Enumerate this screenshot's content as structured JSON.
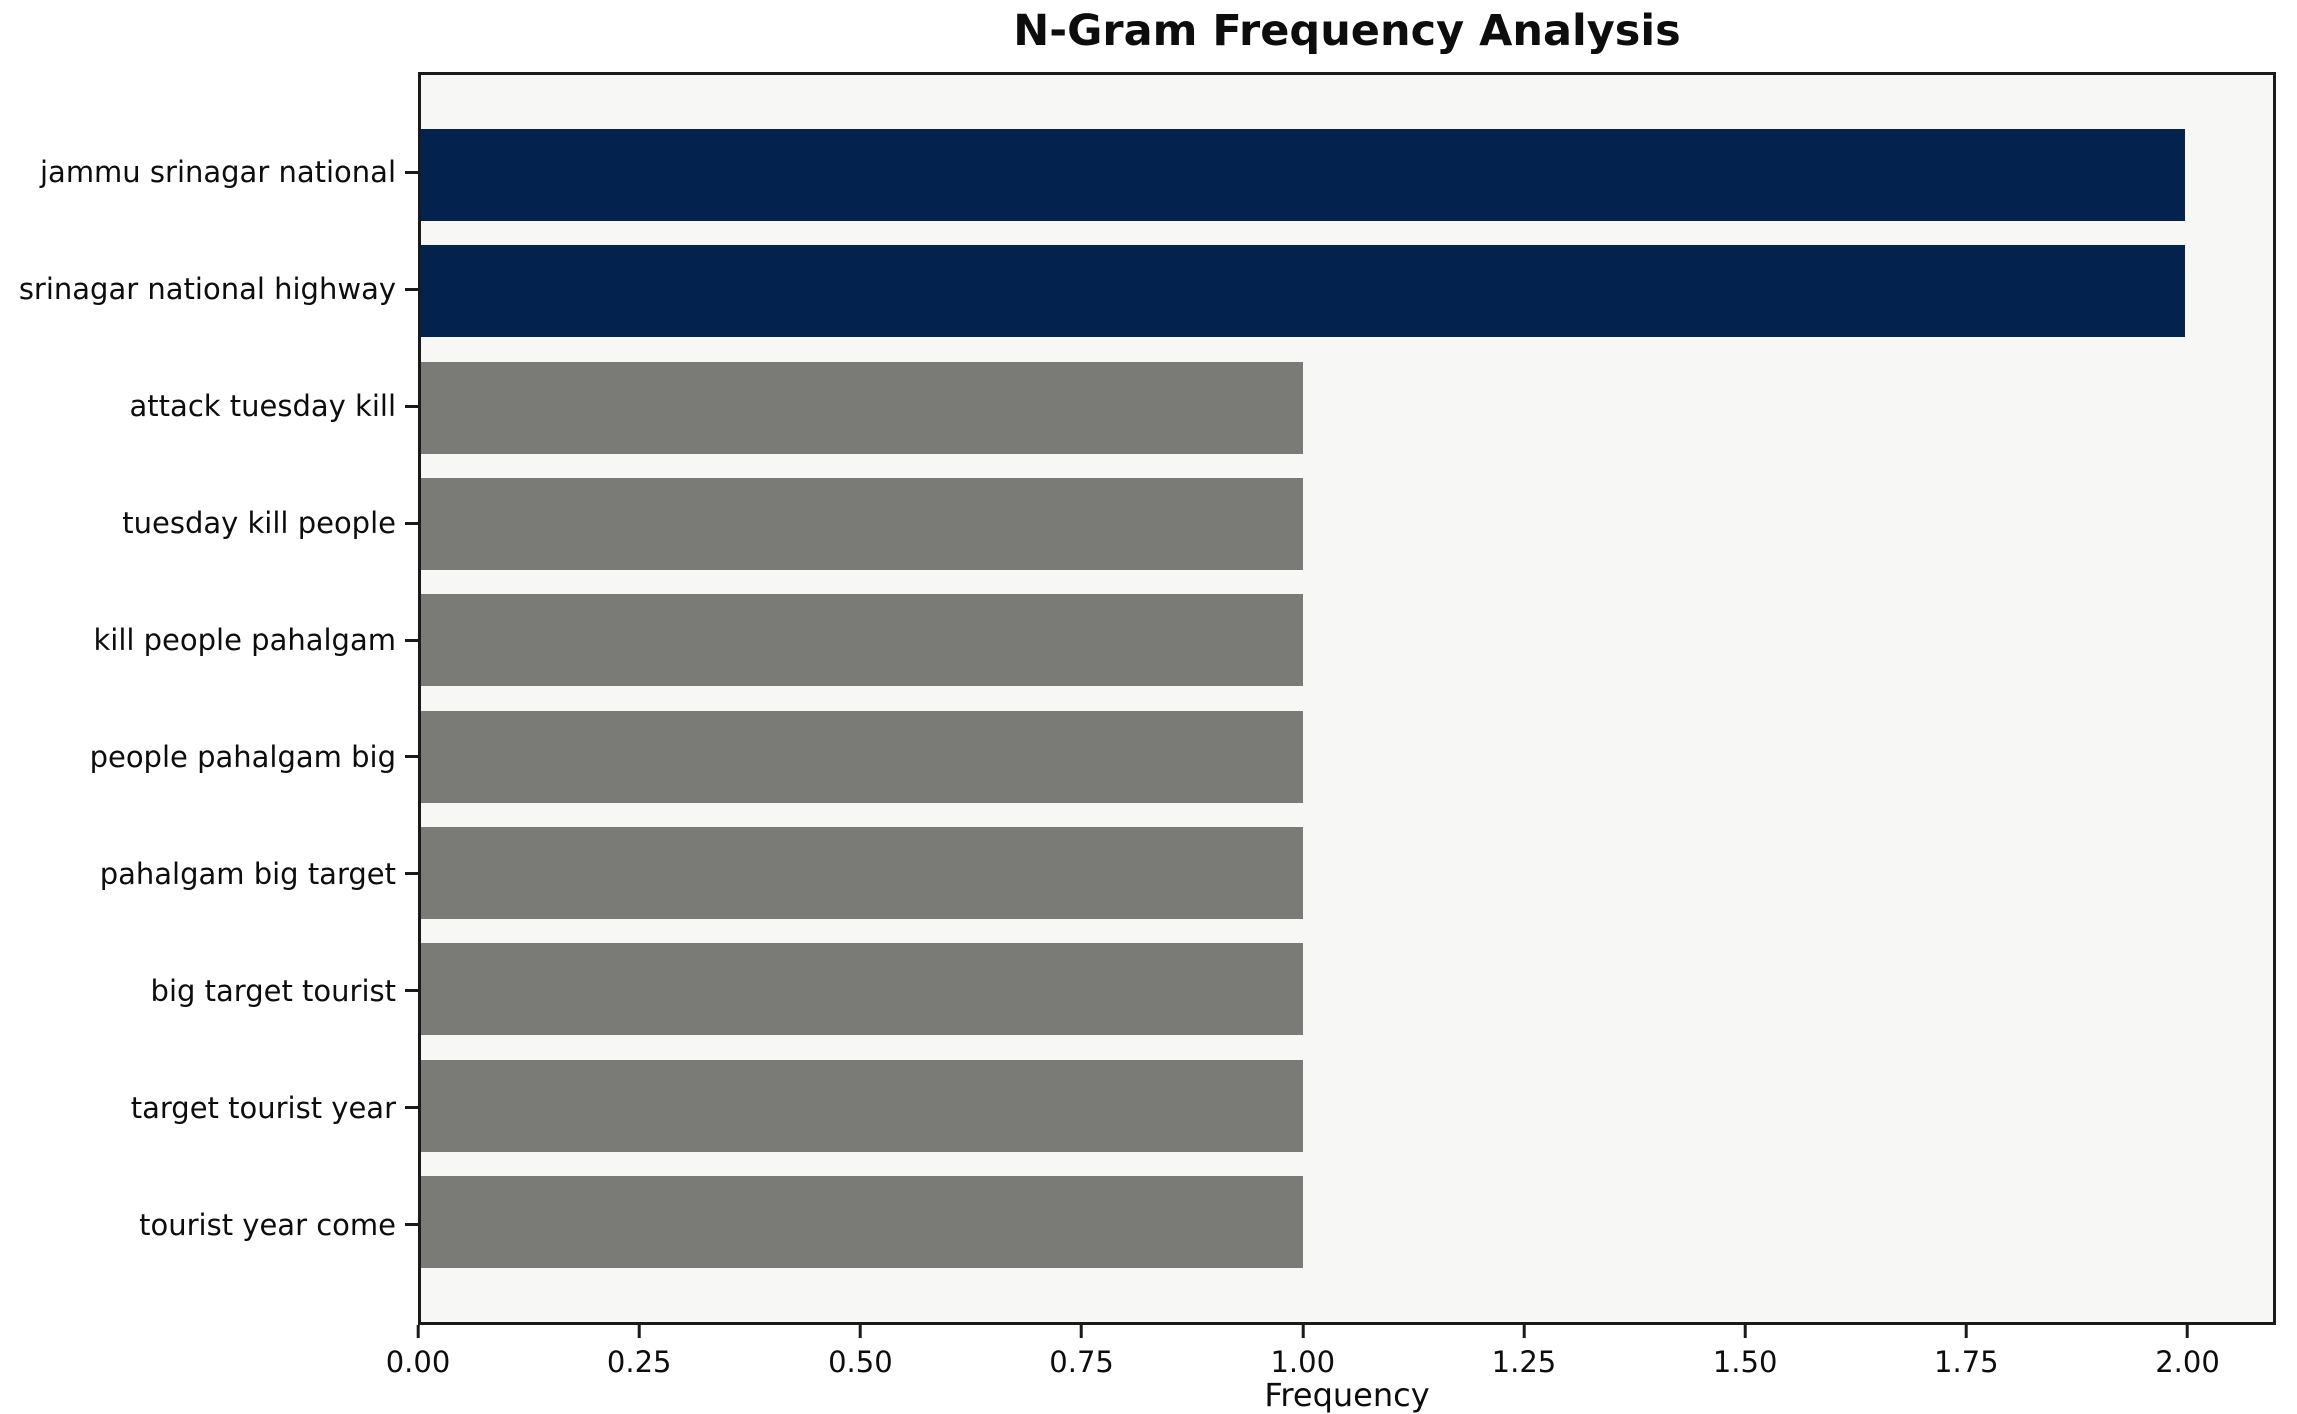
{
  "chart_data": {
    "type": "bar",
    "orientation": "horizontal",
    "title": "N-Gram Frequency Analysis",
    "xlabel": "Frequency",
    "ylabel": "",
    "xlim": [
      0,
      2.1
    ],
    "grid": false,
    "legend": false,
    "categories": [
      "jammu srinagar national",
      "srinagar national highway",
      "attack tuesday kill",
      "tuesday kill people",
      "kill people pahalgam",
      "people pahalgam big",
      "pahalgam big target",
      "big target tourist",
      "target tourist year",
      "tourist year come"
    ],
    "values": [
      2,
      2,
      1,
      1,
      1,
      1,
      1,
      1,
      1,
      1
    ],
    "bar_colors": [
      "#03234e",
      "#03234e",
      "#7a7a77",
      "#7a7a77",
      "#7a7a77",
      "#7a7a77",
      "#7a7a77",
      "#7a7a77",
      "#7a7a77",
      "#7a7a77"
    ],
    "xticks": [
      {
        "value": 0.0,
        "label": "0.00"
      },
      {
        "value": 0.25,
        "label": "0.25"
      },
      {
        "value": 0.5,
        "label": "0.50"
      },
      {
        "value": 0.75,
        "label": "0.75"
      },
      {
        "value": 1.0,
        "label": "1.00"
      },
      {
        "value": 1.25,
        "label": "1.25"
      },
      {
        "value": 1.5,
        "label": "1.50"
      },
      {
        "value": 1.75,
        "label": "1.75"
      },
      {
        "value": 2.0,
        "label": "2.00"
      }
    ],
    "colors": {
      "highlight_bar": "#03234e",
      "default_bar": "#7a7a77",
      "plot_background": "#f7f7f5",
      "figure_background": "#ffffff",
      "axis_frame": "#1a1a1a",
      "text": "#0d0d0d"
    }
  }
}
